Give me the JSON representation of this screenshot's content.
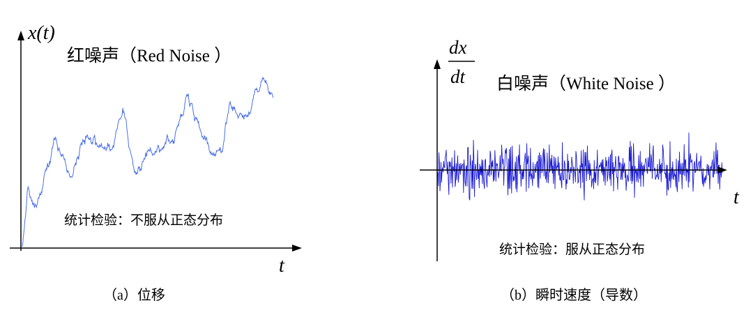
{
  "panel_a": {
    "y_axis_label": "x(t)",
    "x_axis_label": "t",
    "title": "红噪声（Red Noise ）",
    "note": "统计检验：不服从正态分布",
    "caption": "（a）位移",
    "line_color": "#4a6ee8"
  },
  "panel_b": {
    "y_axis_label_num": "dx",
    "y_axis_label_den": "dt",
    "x_axis_label": "t",
    "title": "白噪声（White Noise ）",
    "note": "统计检验：服从正态分布",
    "caption": "（b）瞬时速度（导数）",
    "line_color": "#1a1ad4"
  }
}
